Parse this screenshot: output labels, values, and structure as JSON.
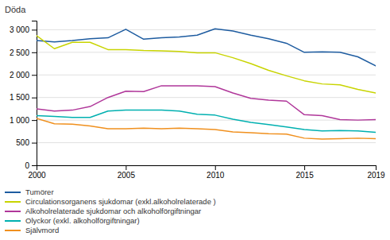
{
  "chart_data": {
    "type": "line",
    "ylabel": "Döda",
    "x": [
      2000,
      2001,
      2002,
      2003,
      2004,
      2005,
      2006,
      2007,
      2008,
      2009,
      2010,
      2011,
      2012,
      2013,
      2014,
      2015,
      2016,
      2017,
      2018,
      2019
    ],
    "series": [
      {
        "name": "Tumörer",
        "color": "#1e5ca0",
        "values": [
          2760,
          2730,
          2760,
          2800,
          2820,
          3010,
          2790,
          2820,
          2840,
          2880,
          3020,
          2970,
          2880,
          2800,
          2700,
          2500,
          2510,
          2500,
          2400,
          2200
        ]
      },
      {
        "name": "Circulationsorganens sjukdomar (exkl.alkoholrelaterade )",
        "color": "#c8d400",
        "values": [
          2870,
          2580,
          2720,
          2720,
          2560,
          2560,
          2540,
          2530,
          2520,
          2490,
          2490,
          2380,
          2250,
          2100,
          1980,
          1870,
          1800,
          1780,
          1680,
          1600
        ]
      },
      {
        "name": "Alkoholrelaterade sjukdomar och alkoholförgiftningar",
        "color": "#b0379a",
        "values": [
          1250,
          1200,
          1220,
          1300,
          1500,
          1640,
          1630,
          1760,
          1760,
          1760,
          1740,
          1600,
          1480,
          1440,
          1420,
          1120,
          1100,
          1010,
          1000,
          1010
        ]
      },
      {
        "name": "Olyckor (exkl. alkoholförgiftningar)",
        "color": "#00b0b0",
        "values": [
          1100,
          1080,
          1060,
          1060,
          1200,
          1220,
          1220,
          1220,
          1200,
          1130,
          1110,
          1020,
          950,
          900,
          850,
          790,
          760,
          770,
          760,
          730
        ]
      },
      {
        "name": "Självmord",
        "color": "#f0901e",
        "values": [
          1040,
          920,
          910,
          870,
          810,
          810,
          820,
          810,
          820,
          810,
          790,
          740,
          720,
          700,
          690,
          600,
          580,
          590,
          600,
          590
        ]
      }
    ],
    "xlim": [
      2000,
      2019
    ],
    "xticks": [
      2000,
      2005,
      2010,
      2015,
      2019
    ],
    "ylim": [
      0,
      3200
    ],
    "yticks": [
      0,
      500,
      {
        "value": 1000,
        "label": "1 000"
      },
      {
        "value": 1500,
        "label": "1 500"
      },
      {
        "value": 2000,
        "label": "2 000"
      },
      {
        "value": 2500,
        "label": "2 500"
      },
      {
        "value": 3000,
        "label": "3 000"
      }
    ],
    "grid": "y",
    "legend": "bottom"
  }
}
